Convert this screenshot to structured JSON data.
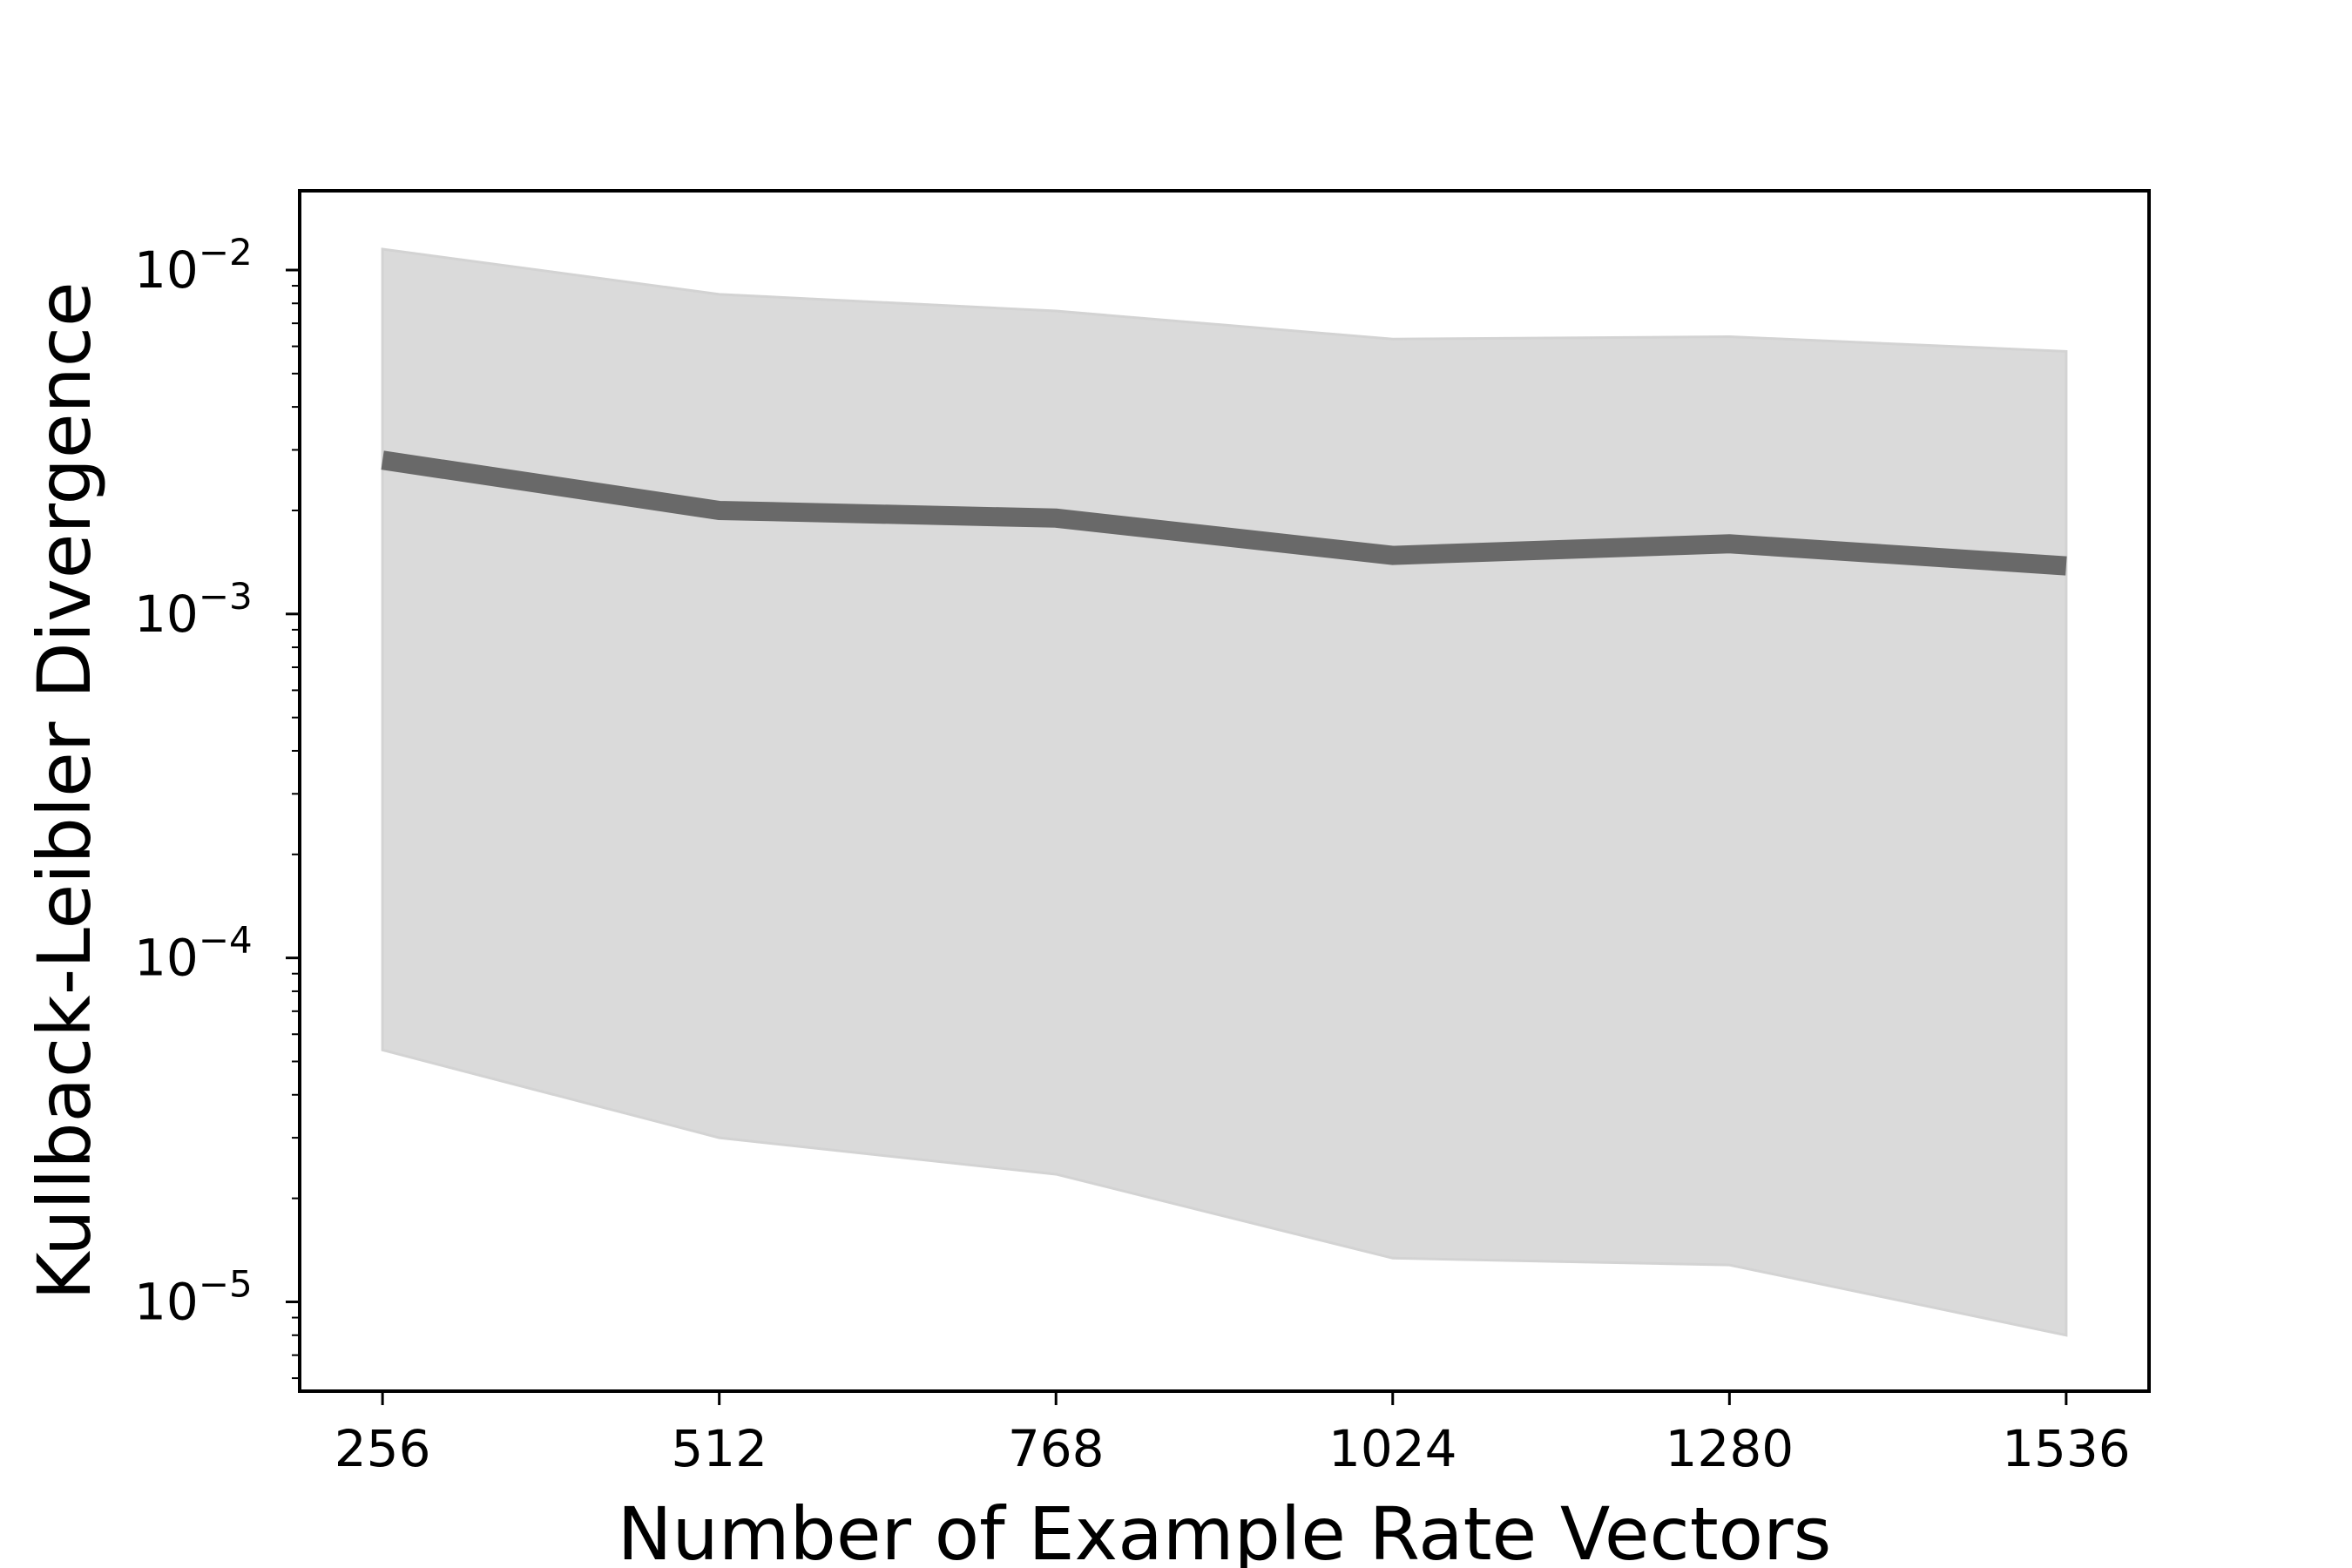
{
  "chart_data": {
    "type": "line",
    "title": "",
    "xlabel": "Number of Example Rate Vectors",
    "ylabel": "Kullback-Leibler Divergence",
    "x": [
      256,
      512,
      768,
      1024,
      1280,
      1536
    ],
    "x_tick_labels": [
      "256",
      "512",
      "768",
      "1024",
      "1280",
      "1536"
    ],
    "xlim": [
      193,
      1599
    ],
    "y_scale": "log",
    "ylim": [
      5.5e-06,
      0.017
    ],
    "y_tick_labels": [
      {
        "value": 1e-05,
        "base": "10",
        "exponent": "−5"
      },
      {
        "value": 0.0001,
        "base": "10",
        "exponent": "−4"
      },
      {
        "value": 0.001,
        "base": "10",
        "exponent": "−3"
      },
      {
        "value": 0.01,
        "base": "10",
        "exponent": "−2"
      }
    ],
    "grid": false,
    "series": [
      {
        "values": [
          0.0028,
          0.002,
          0.0019,
          0.00148,
          0.0016,
          0.00138
        ],
        "color": "#696969"
      }
    ],
    "band": {
      "upper": [
        0.0115,
        0.0085,
        0.0076,
        0.0063,
        0.0064,
        0.0058
      ],
      "lower": [
        5.4e-05,
        3e-05,
        2.35e-05,
        1.34e-05,
        1.28e-05,
        8e-06
      ],
      "color": "#dadada",
      "edge_color": "#d3d3d3"
    }
  }
}
